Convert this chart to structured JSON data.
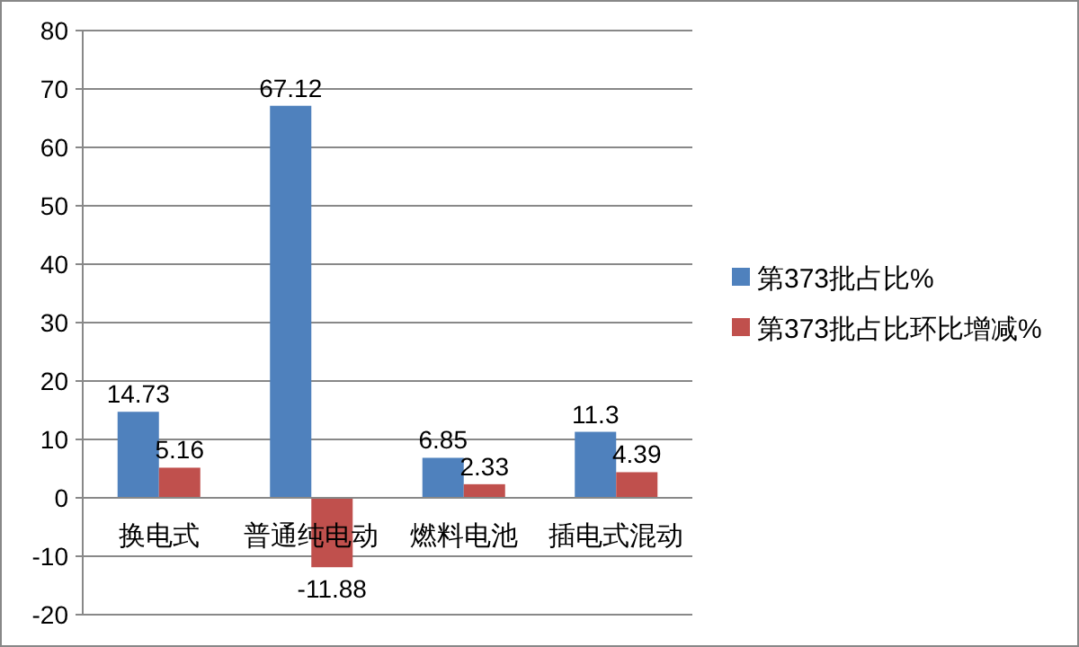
{
  "chart_data": {
    "type": "bar",
    "categories": [
      "换电式",
      "普通纯电动",
      "燃料电池",
      "插电式混动"
    ],
    "series": [
      {
        "name": "第373批占比%",
        "color": "#4f81bd",
        "values": [
          14.73,
          67.12,
          6.85,
          11.3
        ]
      },
      {
        "name": "第373批占比环比增减%",
        "color": "#c0504d",
        "values": [
          5.16,
          -11.88,
          2.33,
          4.39
        ]
      }
    ],
    "ylim": [
      -20,
      80
    ],
    "yticks": [
      -20,
      -10,
      0,
      10,
      20,
      30,
      40,
      50,
      60,
      70,
      80
    ],
    "grid": "y",
    "legend": "right",
    "data_labels": true
  }
}
